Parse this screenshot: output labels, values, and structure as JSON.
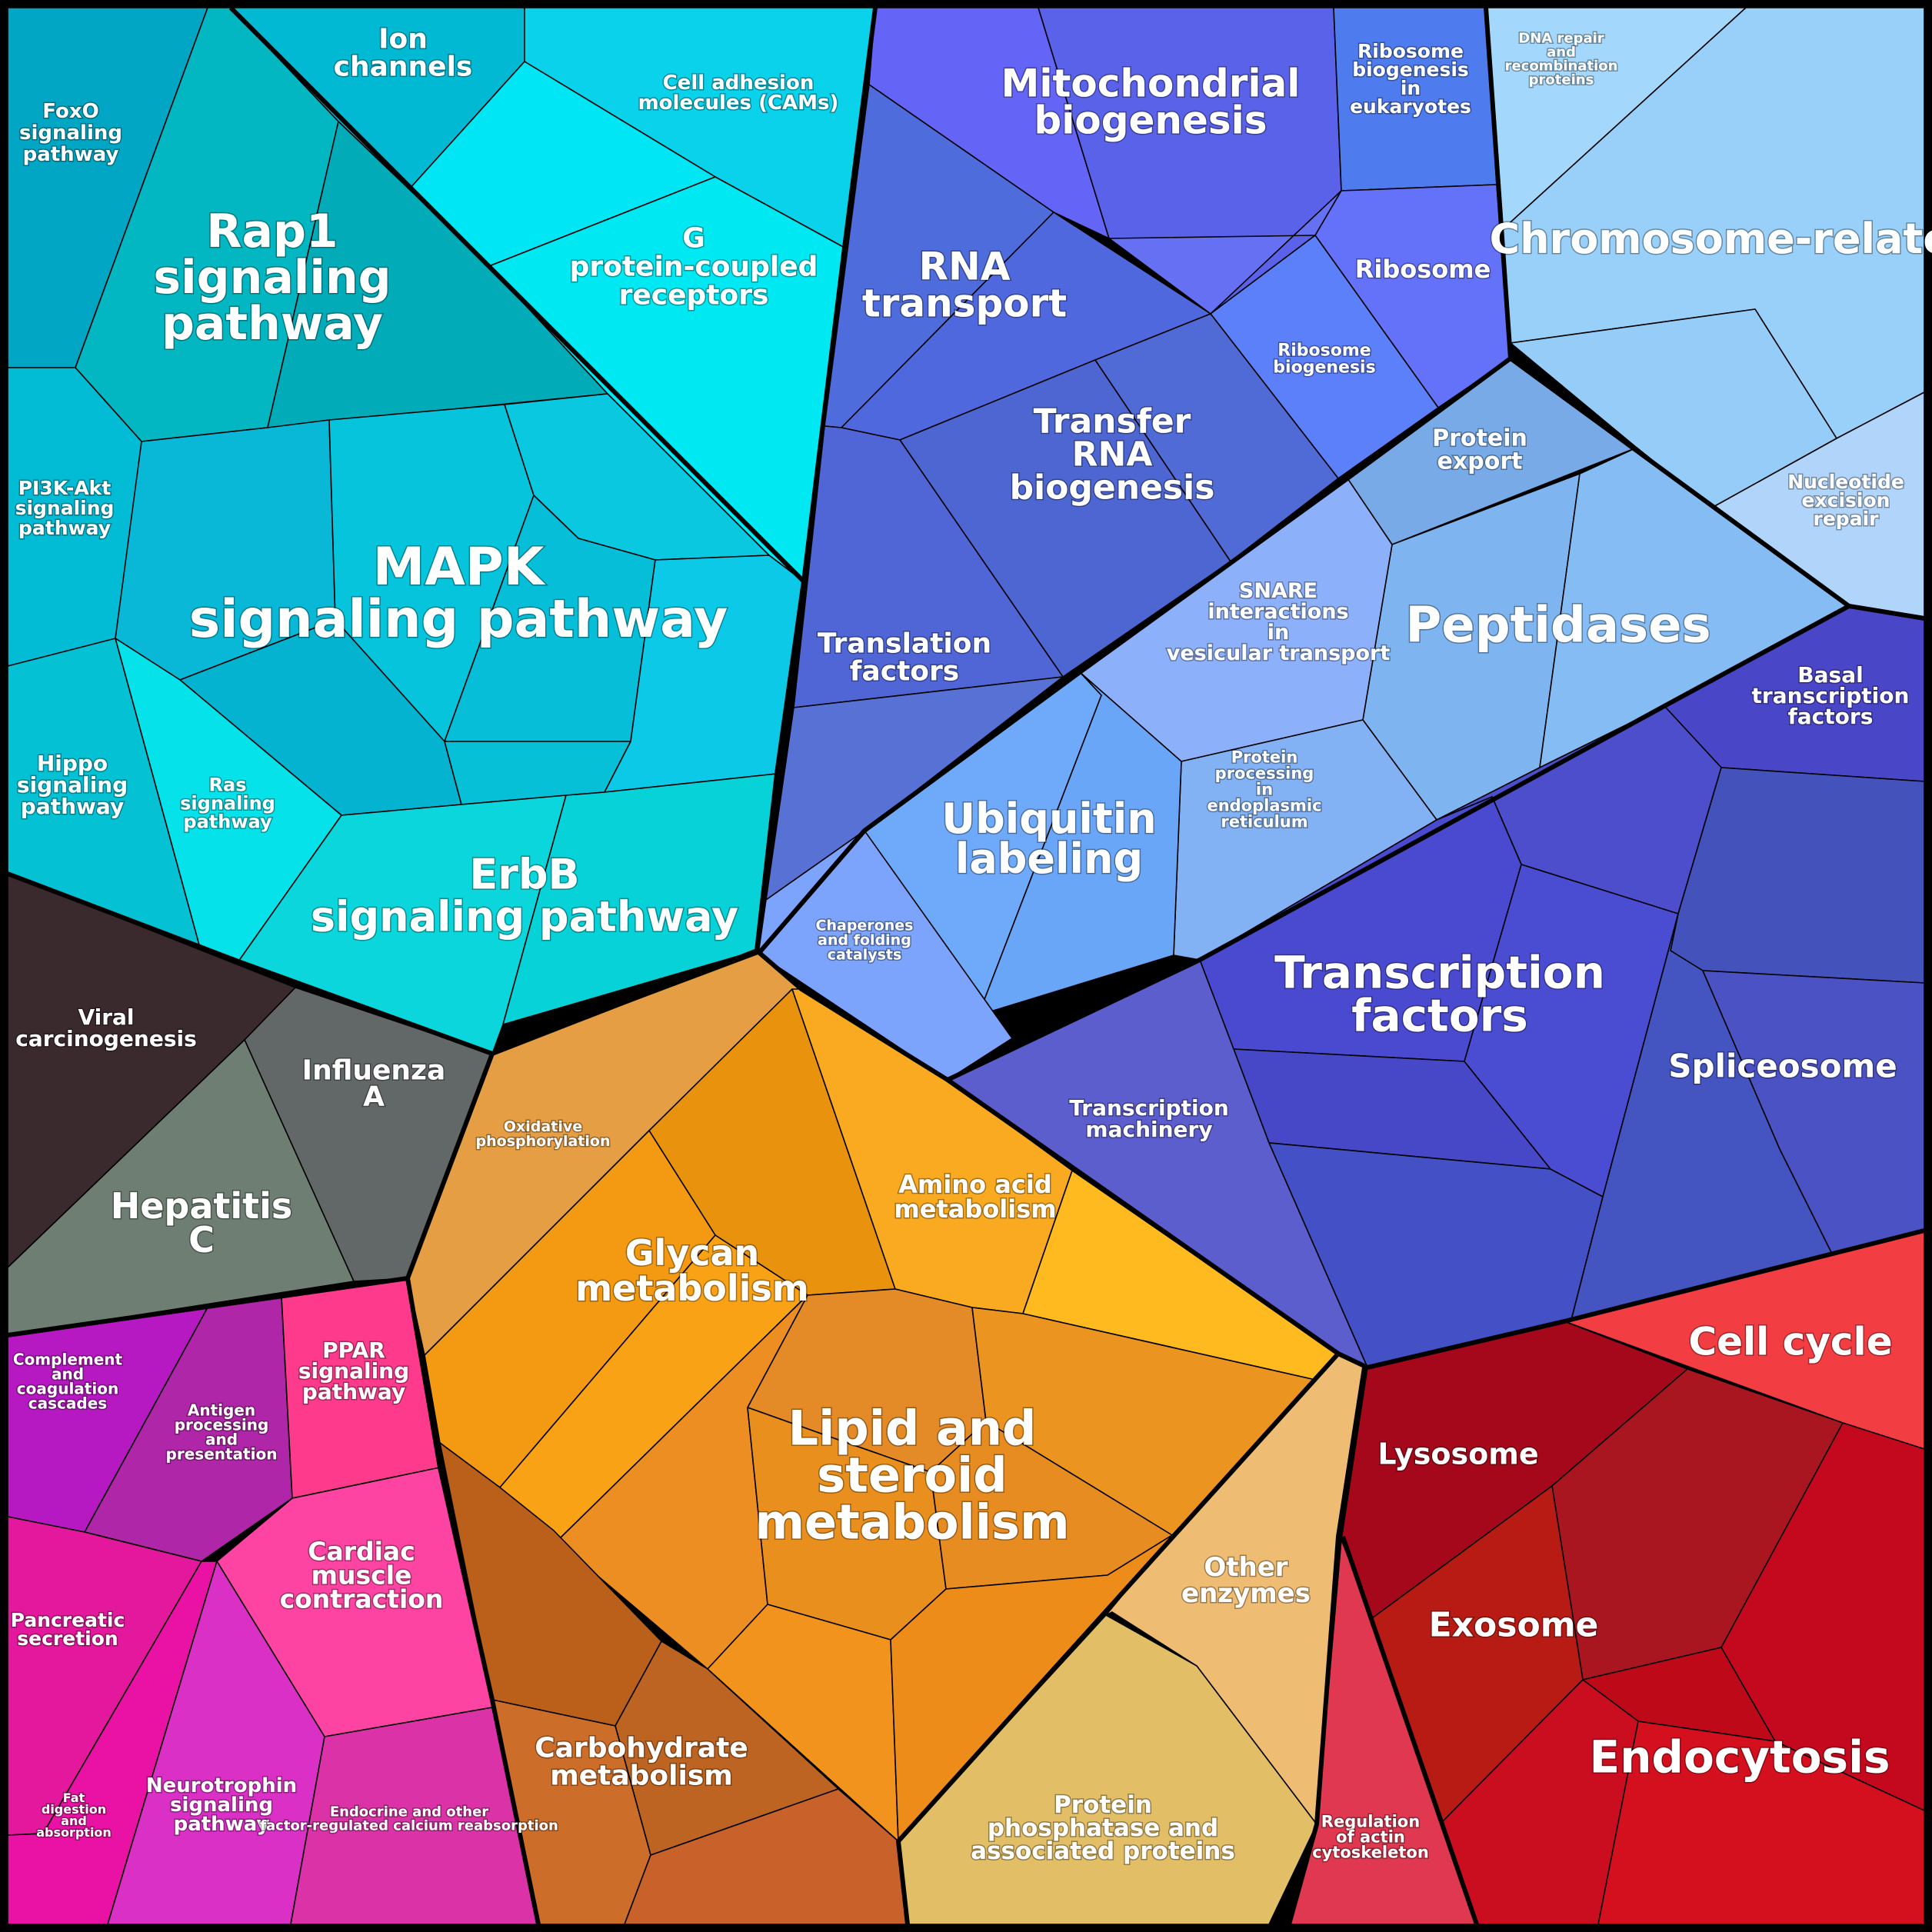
{
  "groups": {
    "signaling": {
      "color": "#08C4DA"
    },
    "genetic_information": {
      "color": "#5565DE"
    },
    "protein_processing": {
      "color": "#7AB2F2"
    },
    "chromosome": {
      "color": "#9CD2FA"
    },
    "infectious_disease": {
      "color": "#5E6A64"
    },
    "organismal_systems": {
      "color": "#D21FB0"
    },
    "metabolism": {
      "color": "#F29A22"
    },
    "cellular_processes": {
      "color": "#C8101E"
    }
  },
  "labels": {
    "foxo": "FoxO signaling pathway",
    "ion_channels": "Ion channels",
    "cell_adhesion": "Cell adhesion molecules (CAMs)",
    "rap1": "Rap1 signaling pathway",
    "gpcr": "G protein-coupled receptors",
    "pi3k": "PI3K-Akt signaling pathway",
    "mapk": "MAPK signaling pathway",
    "hippo": "Hippo signaling pathway",
    "ras": "Ras signaling pathway",
    "erbb": "ErbB signaling pathway",
    "mito": "Mitochondrial biogenesis",
    "ribo_euk": "Ribosome biogenesis in eukaryotes",
    "ribosome": "Ribosome",
    "rna_transport": "RNA transport",
    "ribo_bio": "Ribosome biogenesis",
    "trna": "Transfer RNA biogenesis",
    "translation": "Translation factors",
    "dna_repair": "DNA repair and recombination proteins",
    "chromosome": "Chromosome-related",
    "nucleotide": "Nucleotide excision repair",
    "protein_export": "Protein export",
    "peptidases": "Peptidases",
    "snare": "SNARE interactions in vesicular transport",
    "basal": "Basal transcription factors",
    "ubiquitin": "Ubiquitin labeling",
    "er": "Protein processing in endoplasmic reticulum",
    "chaperones": "Chaperones and folding catalysts",
    "tf": "Transcription factors",
    "spliceosome": "Spliceosome",
    "tmachinery": "Transcription machinery",
    "viral": "Viral carcinogenesis",
    "influenza": "Influenza A",
    "hepatitis": "Hepatitis C",
    "oxphos": "Oxidative phosphorylation",
    "amino": "Amino acid metabolism",
    "glycan": "Glycan metabolism",
    "lipid": "Lipid and steroid metabolism",
    "complement": "Complement and coagulation cascades",
    "antigen": "Antigen processing and presentation",
    "ppar": "PPAR signaling pathway",
    "cardiac": "Cardiac muscle contraction",
    "pancreatic": "Pancreatic secretion",
    "fat": "Fat digestion and absorption",
    "neurotrophin": "Neurotrophin signaling pathway",
    "endocrine": "Endocrine and other factor-regulated calcium reabsorption",
    "carbohydrate": "Carbohydrate metabolism",
    "other_enzymes": "Other enzymes",
    "phosphatase": "Protein phosphatase and associated proteins",
    "cell_cycle": "Cell cycle",
    "lysosome": "Lysosome",
    "exosome": "Exosome",
    "endocytosis": "Endocytosis",
    "actin": "Regulation of actin cytoskeleton"
  }
}
